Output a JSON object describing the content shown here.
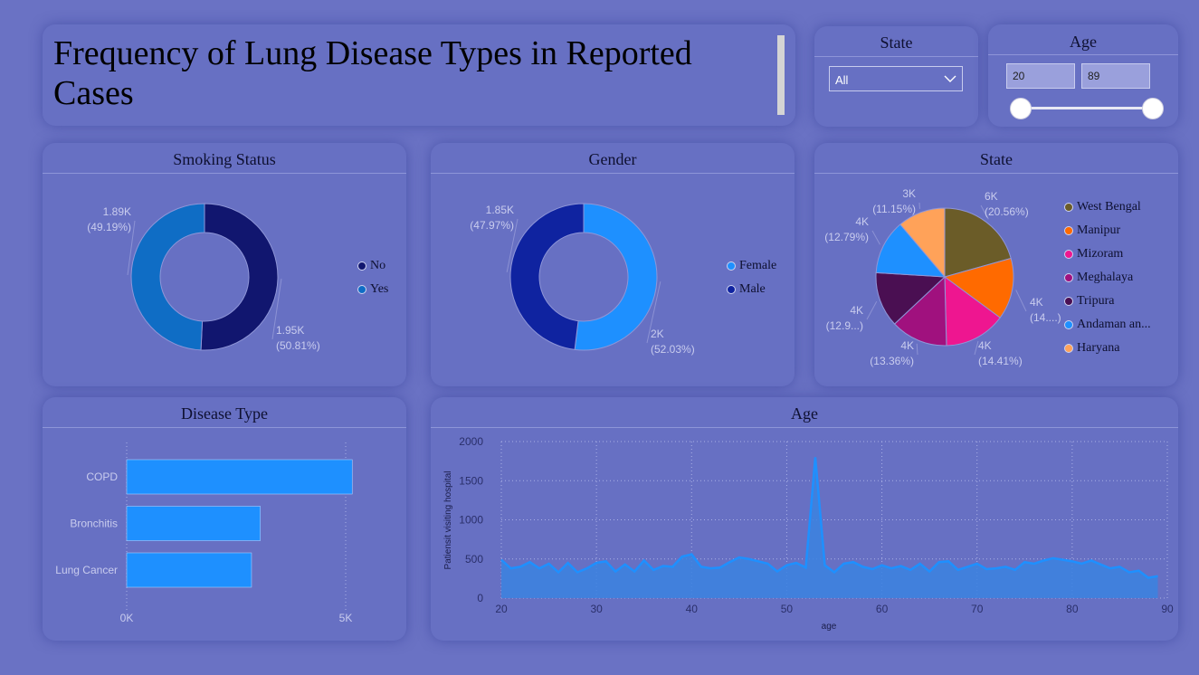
{
  "header": {
    "title": "Frequency of Lung Disease Types in Reported Cases"
  },
  "state_filter": {
    "label": "State",
    "selected": "All"
  },
  "age_filter": {
    "label": "Age",
    "min": "20",
    "max": "89",
    "range_min_fraction": 0,
    "range_max_fraction": 1
  },
  "chart_data": [
    {
      "type": "pie",
      "title": "Smoking Status",
      "donut": true,
      "legend_position": "right",
      "series": [
        {
          "name": "No",
          "value": 1950,
          "label": "1.95K",
          "pct": "(50.81%)",
          "color": "#11166f"
        },
        {
          "name": "Yes",
          "value": 1890,
          "label": "1.89K",
          "pct": "(49.19%)",
          "color": "#0f6dc5"
        }
      ]
    },
    {
      "type": "pie",
      "title": "Gender",
      "donut": true,
      "legend_position": "right",
      "series": [
        {
          "name": "Female",
          "value": 2000,
          "label": "2K",
          "pct": "(52.03%)",
          "color": "#1e90ff"
        },
        {
          "name": "Male",
          "value": 1850,
          "label": "1.85K",
          "pct": "(47.97%)",
          "color": "#0f23a0"
        }
      ]
    },
    {
      "type": "pie",
      "title": "State",
      "donut": false,
      "legend_position": "right",
      "series": [
        {
          "name": "West Bengal",
          "value": 20.56,
          "label": "6K",
          "pct": "(20.56%)",
          "color": "#6b5c28"
        },
        {
          "name": "Manipur",
          "value": 14.41,
          "label": "4K",
          "pct": "(14....)",
          "color": "#ff6a00"
        },
        {
          "name": "Mizoram",
          "value": 14.41,
          "label": "4K",
          "pct": "(14.41%)",
          "color": "#ee1690"
        },
        {
          "name": "Meghalaya",
          "value": 13.36,
          "label": "4K",
          "pct": "(13.36%)",
          "color": "#a0117e"
        },
        {
          "name": "Tripura",
          "value": 12.9,
          "label": "4K",
          "pct": "(12.9...)",
          "color": "#4a0f52"
        },
        {
          "name": "Andaman an...",
          "value": 12.79,
          "label": "4K",
          "pct": "(12.79%)",
          "color": "#1e90ff"
        },
        {
          "name": "Haryana",
          "value": 11.15,
          "label": "3K",
          "pct": "(11.15%)",
          "color": "#ffa259"
        }
      ]
    },
    {
      "type": "bar",
      "orientation": "horizontal",
      "title": "Disease Type",
      "categories": [
        "COPD",
        "Bronchitis",
        "Lung Cancer"
      ],
      "values": [
        5150,
        3050,
        2850
      ],
      "xlim": [
        0,
        5000
      ],
      "xticks": [
        "0K",
        "5K"
      ],
      "grid": true,
      "color": "#1e90ff"
    },
    {
      "type": "area",
      "title": "Age",
      "xlabel": "age",
      "ylabel": "Patiensit visiting hospital",
      "xlim": [
        20,
        90
      ],
      "ylim": [
        0,
        2000
      ],
      "xticks": [
        "20",
        "30",
        "40",
        "50",
        "60",
        "70",
        "80",
        "90"
      ],
      "yticks": [
        "0",
        "500",
        "1000",
        "1500",
        "2000"
      ],
      "grid": true,
      "color": "#1e90ff",
      "x": [
        20,
        21,
        22,
        23,
        24,
        25,
        26,
        27,
        28,
        29,
        30,
        31,
        32,
        33,
        34,
        35,
        36,
        37,
        38,
        39,
        40,
        41,
        42,
        43,
        44,
        45,
        46,
        47,
        48,
        49,
        50,
        51,
        52,
        53,
        54,
        55,
        56,
        57,
        58,
        59,
        60,
        61,
        62,
        63,
        64,
        65,
        66,
        67,
        68,
        69,
        70,
        71,
        72,
        73,
        74,
        75,
        76,
        77,
        78,
        79,
        80,
        81,
        82,
        83,
        84,
        85,
        86,
        87,
        88,
        89
      ],
      "y": [
        490,
        380,
        400,
        460,
        380,
        440,
        330,
        450,
        330,
        380,
        450,
        470,
        340,
        430,
        340,
        480,
        360,
        410,
        400,
        530,
        560,
        400,
        380,
        390,
        460,
        520,
        500,
        470,
        440,
        340,
        420,
        450,
        390,
        1800,
        420,
        330,
        440,
        460,
        400,
        370,
        420,
        380,
        410,
        360,
        440,
        340,
        460,
        470,
        360,
        400,
        440,
        370,
        380,
        400,
        360,
        460,
        440,
        480,
        510,
        490,
        470,
        440,
        480,
        430,
        380,
        400,
        330,
        350,
        260,
        280
      ]
    }
  ]
}
